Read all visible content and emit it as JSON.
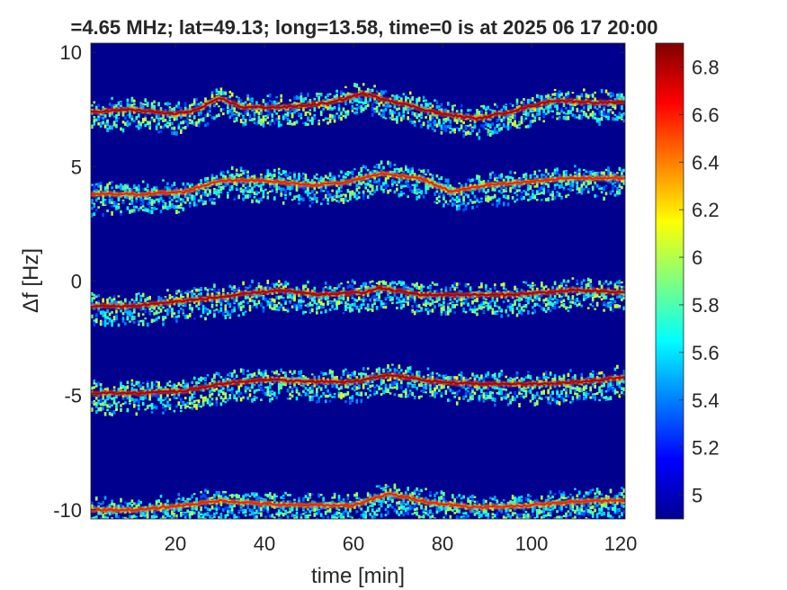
{
  "chart_data": {
    "type": "heatmap",
    "title": "=4.65 MHz;  lat=49.13; long=13.58, time=0 is at 2025 06 17 20:00",
    "xlabel": "time [min]",
    "ylabel": "Δf [Hz]",
    "xlim": [
      1,
      121
    ],
    "ylim": [
      -10.4,
      10.4
    ],
    "xticks": [
      20,
      40,
      60,
      80,
      100,
      120
    ],
    "yticks": [
      -10,
      -5,
      0,
      5,
      10
    ],
    "background_color": "#00008f",
    "colorbar": {
      "limits": [
        4.9,
        6.9
      ],
      "ticks": [
        "5",
        "5.2",
        "5.4",
        "5.6",
        "5.8",
        "6",
        "6.2",
        "6.4",
        "6.6",
        "6.8"
      ],
      "colormap": "jet"
    },
    "traces": [
      {
        "name": "",
        "peak_value": 6.8,
        "spread_hz": 0.4,
        "points": [
          [
            1,
            7.4
          ],
          [
            10,
            7.5
          ],
          [
            20,
            7.3
          ],
          [
            25,
            7.5
          ],
          [
            30,
            8.0
          ],
          [
            35,
            7.6
          ],
          [
            45,
            7.6
          ],
          [
            55,
            7.8
          ],
          [
            62,
            8.2
          ],
          [
            70,
            7.8
          ],
          [
            80,
            7.3
          ],
          [
            88,
            7.1
          ],
          [
            95,
            7.4
          ],
          [
            105,
            7.9
          ],
          [
            115,
            7.8
          ],
          [
            121,
            7.8
          ]
        ]
      },
      {
        "name": "",
        "peak_value": 6.6,
        "spread_hz": 0.4,
        "points": [
          [
            1,
            3.8
          ],
          [
            12,
            3.8
          ],
          [
            22,
            3.9
          ],
          [
            30,
            4.4
          ],
          [
            40,
            4.4
          ],
          [
            50,
            4.2
          ],
          [
            58,
            4.3
          ],
          [
            66,
            4.7
          ],
          [
            75,
            4.5
          ],
          [
            82,
            3.9
          ],
          [
            90,
            4.2
          ],
          [
            98,
            4.3
          ],
          [
            108,
            4.5
          ],
          [
            121,
            4.5
          ]
        ]
      },
      {
        "name": "",
        "peak_value": 6.8,
        "spread_hz": 0.4,
        "points": [
          [
            1,
            -1.1
          ],
          [
            10,
            -1.1
          ],
          [
            20,
            -0.9
          ],
          [
            30,
            -0.7
          ],
          [
            43,
            -0.4
          ],
          [
            52,
            -0.6
          ],
          [
            62,
            -0.5
          ],
          [
            66,
            -0.3
          ],
          [
            75,
            -0.6
          ],
          [
            85,
            -0.6
          ],
          [
            95,
            -0.6
          ],
          [
            110,
            -0.4
          ],
          [
            121,
            -0.5
          ]
        ]
      },
      {
        "name": "",
        "peak_value": 6.8,
        "spread_hz": 0.4,
        "points": [
          [
            1,
            -4.9
          ],
          [
            12,
            -4.9
          ],
          [
            22,
            -4.8
          ],
          [
            30,
            -4.5
          ],
          [
            40,
            -4.3
          ],
          [
            50,
            -4.4
          ],
          [
            60,
            -4.4
          ],
          [
            68,
            -4.1
          ],
          [
            78,
            -4.4
          ],
          [
            88,
            -4.5
          ],
          [
            100,
            -4.5
          ],
          [
            112,
            -4.4
          ],
          [
            121,
            -4.2
          ]
        ]
      },
      {
        "name": "",
        "peak_value": 6.6,
        "spread_hz": 0.4,
        "points": [
          [
            1,
            -10.0
          ],
          [
            12,
            -10.0
          ],
          [
            22,
            -9.8
          ],
          [
            30,
            -9.6
          ],
          [
            45,
            -9.8
          ],
          [
            60,
            -9.8
          ],
          [
            68,
            -9.3
          ],
          [
            78,
            -9.7
          ],
          [
            88,
            -9.9
          ],
          [
            100,
            -9.8
          ],
          [
            112,
            -9.6
          ],
          [
            121,
            -9.6
          ]
        ]
      }
    ]
  }
}
